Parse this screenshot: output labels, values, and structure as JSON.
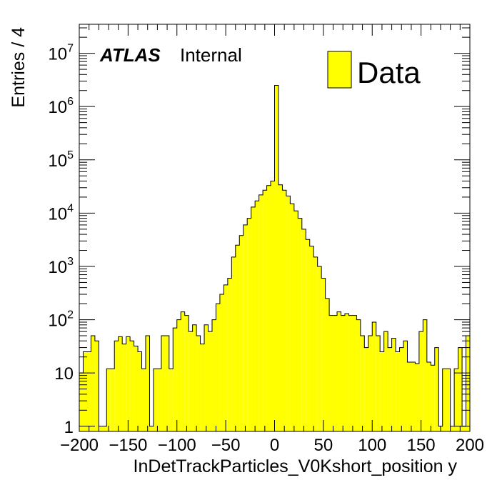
{
  "chart_data": {
    "type": "bar",
    "style": "histogram",
    "fill_color": "#ffff00",
    "line_color": "#000000",
    "xlabel": "InDetTrackParticles_V0Kshort_position y",
    "ylabel": "Entries / 4",
    "xlim": [
      -200,
      200
    ],
    "ylim": [
      0.8,
      35000000
    ],
    "yscale": "log",
    "grid": false,
    "legend_position": "top-right",
    "experiment_label": "ATLAS",
    "status_label": "Internal",
    "xticks": [
      -200,
      -150,
      -100,
      -50,
      0,
      50,
      100,
      150,
      200
    ],
    "xtick_labels": [
      "−200",
      "−150",
      "−100",
      "−50",
      "0",
      "50",
      "100",
      "150",
      "200"
    ],
    "yticks": [
      {
        "value": 1,
        "base": "1",
        "exp": ""
      },
      {
        "value": 10,
        "base": "10",
        "exp": ""
      },
      {
        "value": 100,
        "base": "10",
        "exp": "2"
      },
      {
        "value": 1000,
        "base": "10",
        "exp": "3"
      },
      {
        "value": 10000,
        "base": "10",
        "exp": "4"
      },
      {
        "value": 100000,
        "base": "10",
        "exp": "5"
      },
      {
        "value": 1000000,
        "base": "10",
        "exp": "6"
      },
      {
        "value": 10000000,
        "base": "10",
        "exp": "7"
      }
    ],
    "series": [
      {
        "name": "Data",
        "bin_width": 4,
        "bin_edges_start": -200,
        "values": [
          10,
          25,
          25,
          50,
          40,
          1,
          1,
          12,
          12,
          40,
          48,
          35,
          48,
          40,
          32,
          25,
          12,
          50,
          1,
          12,
          12,
          50,
          50,
          12,
          70,
          100,
          140,
          120,
          60,
          80,
          50,
          35,
          80,
          60,
          100,
          200,
          300,
          450,
          600,
          1500,
          2500,
          3800,
          6000,
          8000,
          13000,
          17000,
          22000,
          27000,
          33000,
          40000,
          2500000,
          34000,
          27000,
          21000,
          15000,
          11000,
          8000,
          5000,
          3200,
          2400,
          1500,
          1000,
          600,
          250,
          120,
          120,
          140,
          120,
          130,
          120,
          120,
          100,
          50,
          30,
          50,
          90,
          50,
          25,
          60,
          30,
          45,
          25,
          30,
          40,
          16,
          16,
          15,
          60,
          100,
          16,
          14,
          30,
          1,
          12,
          12,
          1,
          12,
          30,
          1,
          50
        ]
      }
    ]
  }
}
